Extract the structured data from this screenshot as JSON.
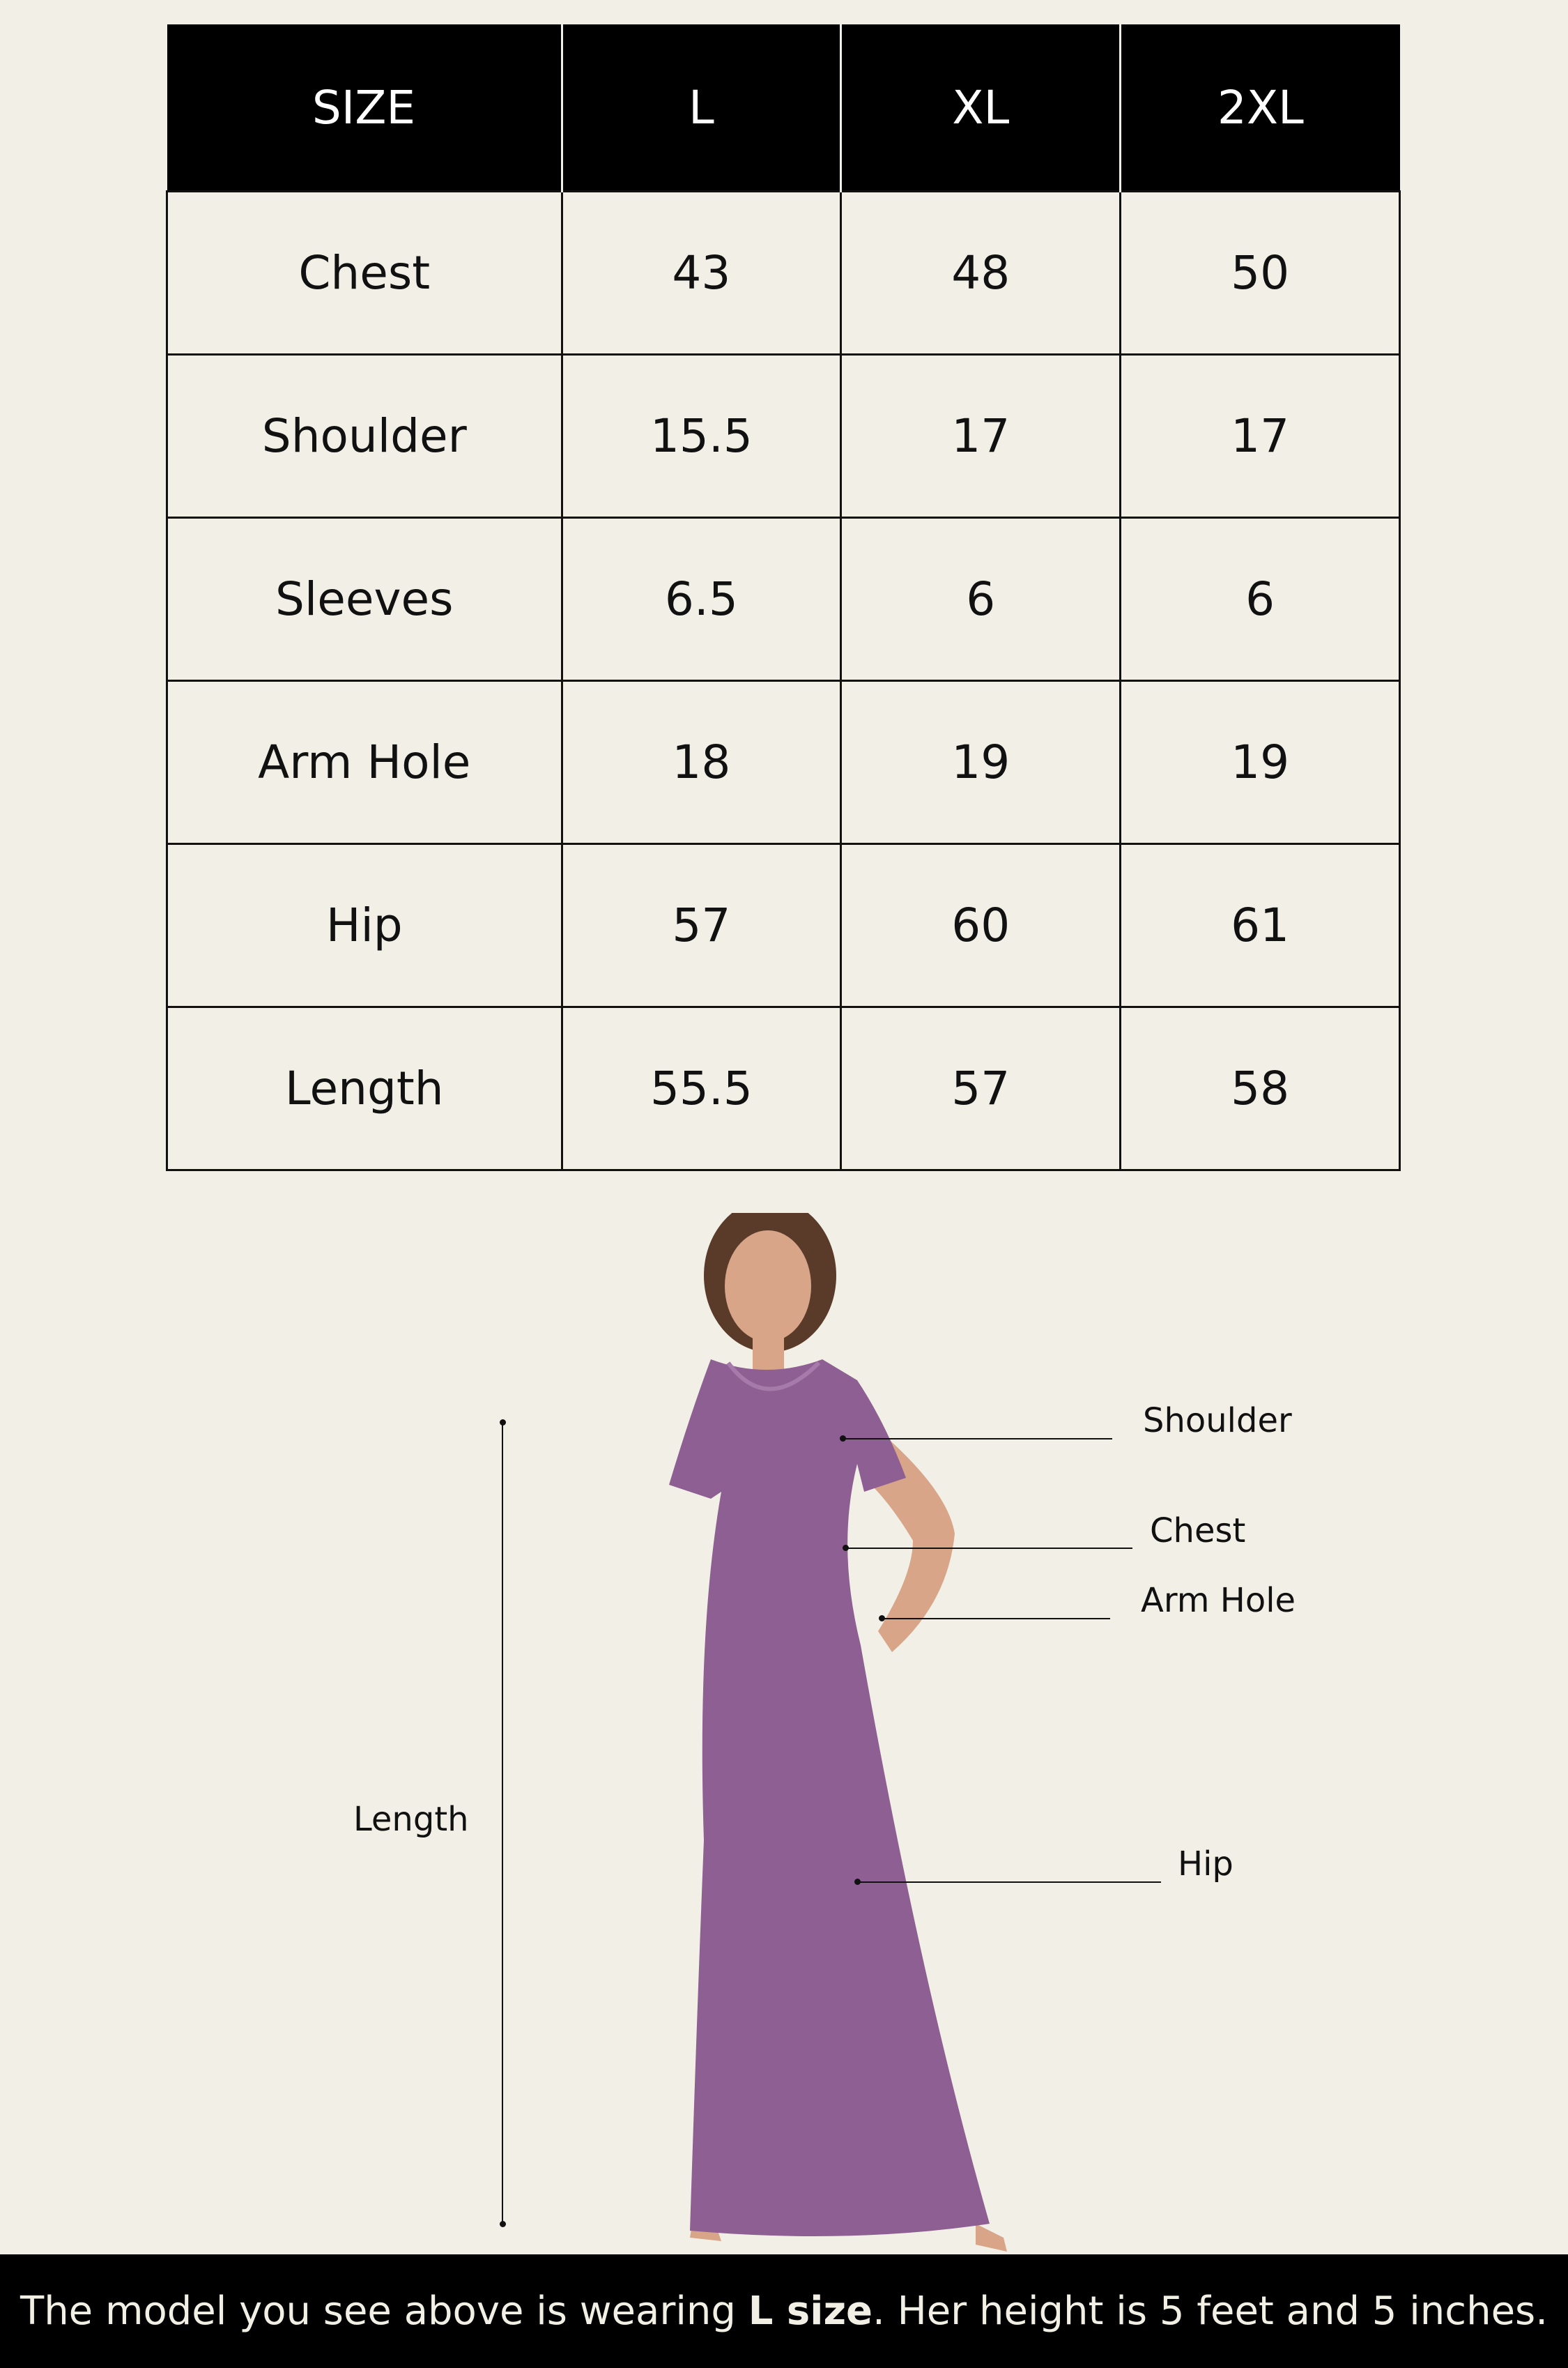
{
  "size_chart": {
    "headers": [
      "SIZE",
      "L",
      "XL",
      "2XL"
    ],
    "rows": [
      {
        "label": "Chest",
        "values": [
          "43",
          "48",
          "50"
        ]
      },
      {
        "label": "Shoulder",
        "values": [
          "15.5",
          "17",
          "17"
        ]
      },
      {
        "label": "Sleeves",
        "values": [
          "6.5",
          "6",
          "6"
        ]
      },
      {
        "label": "Arm Hole",
        "values": [
          "18",
          "19",
          "19"
        ]
      },
      {
        "label": "Hip",
        "values": [
          "57",
          "60",
          "61"
        ]
      },
      {
        "label": "Length",
        "values": [
          "55.5",
          "57",
          "58"
        ]
      }
    ]
  },
  "figure": {
    "labels": {
      "shoulder": "Shoulder",
      "chest": "Chest",
      "arm_hole": "Arm Hole",
      "hip": "Hip",
      "length": "Length"
    },
    "dress_color": "#8e5f93"
  },
  "footer": {
    "text_before": "The model you see above is wearing ",
    "bold": "L size",
    "text_after": ". Her height is 5 feet and 5 inches."
  }
}
